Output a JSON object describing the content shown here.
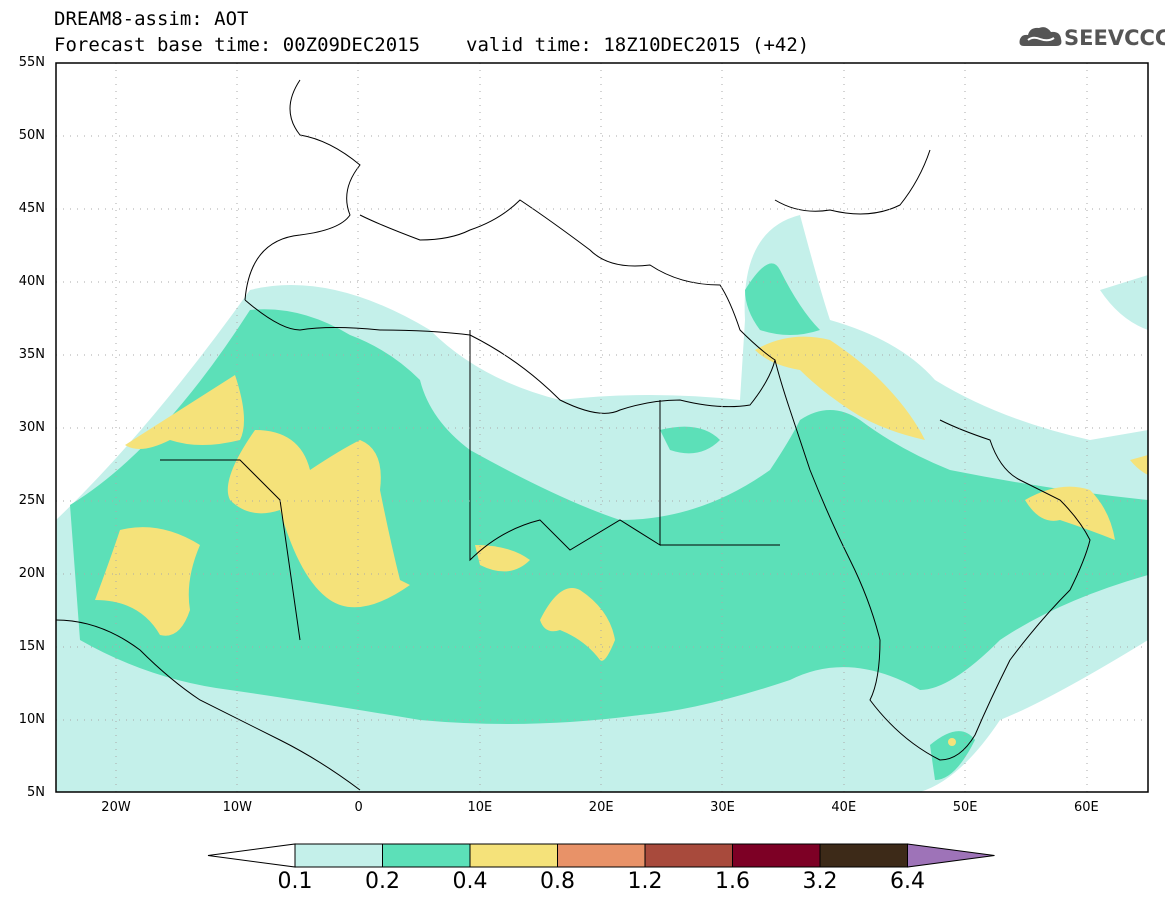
{
  "title": {
    "line1": "DREAM8-assim: AOT",
    "base_time": "Forecast base time: 00Z09DEC2015",
    "valid_time": "valid time: 18Z10DEC2015 (+42)"
  },
  "logo": {
    "text": "SEEVCCC",
    "icon": "cloud-icon"
  },
  "map": {
    "lat_range": [
      5,
      55
    ],
    "lon_range": [
      -25,
      65
    ],
    "grid": "dotted",
    "lat_labels": [
      "55N",
      "50N",
      "45N",
      "40N",
      "35N",
      "30N",
      "25N",
      "20N",
      "15N",
      "10N",
      "5N"
    ],
    "lon_labels": [
      "20W",
      "10W",
      "0",
      "10E",
      "20E",
      "30E",
      "40E",
      "50E",
      "60E"
    ]
  },
  "colorbar": {
    "labels": [
      "0.1",
      "0.2",
      "0.4",
      "0.8",
      "1.2",
      "1.6",
      "3.2",
      "6.4"
    ],
    "colors": [
      "#ffffff",
      "#c4f0ea",
      "#5ce0b8",
      "#f5e27a",
      "#e89268",
      "#a84a3c",
      "#7d0025",
      "#3d2a18",
      "#9e73b8"
    ]
  },
  "colors": {
    "aot_0_1": "#c4f0ea",
    "aot_0_2": "#5ce0b8",
    "aot_0_4": "#f5e27a"
  }
}
